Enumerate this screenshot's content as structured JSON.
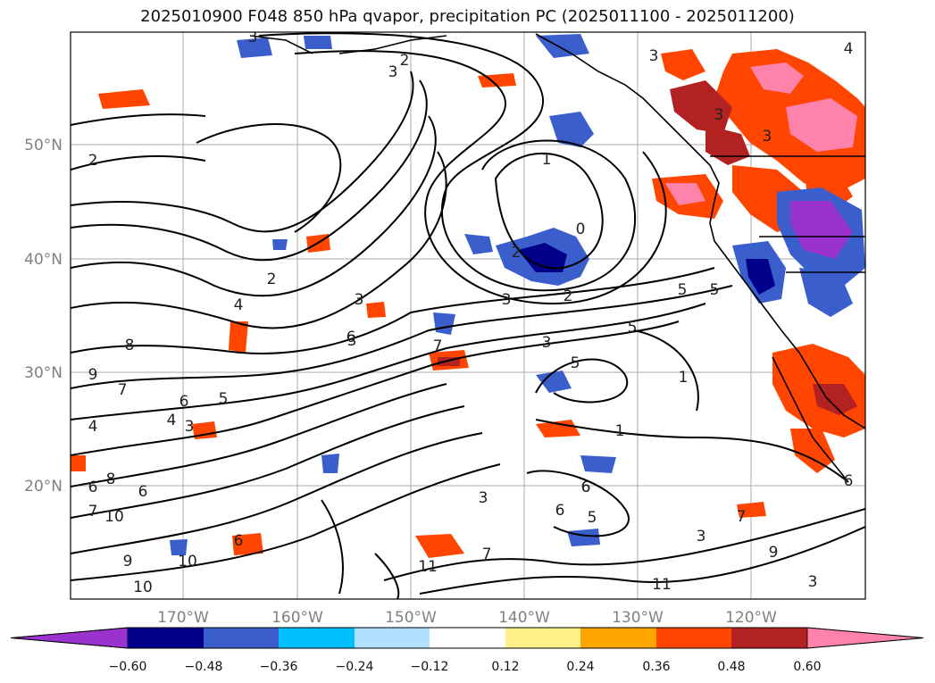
{
  "title": "2025010900 F048 850 hPa qvapor, precipitation PC (2025011100 - 2025011200)",
  "map": {
    "lat_labels": [
      "50°N",
      "40°N",
      "30°N",
      "20°N"
    ],
    "lon_labels": [
      "170°W",
      "160°W",
      "150°W",
      "140°W",
      "130°W",
      "120°W"
    ],
    "contour_labels": [
      "3",
      "2",
      "3",
      "3",
      "2",
      "1",
      "0",
      "2",
      "2",
      "3",
      "4",
      "3",
      "2",
      "3",
      "5",
      "1",
      "3",
      "8",
      "9",
      "7",
      "6",
      "5",
      "4",
      "3",
      "4",
      "7",
      "3",
      "5",
      "1",
      "6",
      "6",
      "8",
      "7",
      "10",
      "6",
      "3",
      "6",
      "5",
      "3",
      "7",
      "6",
      "9",
      "10",
      "10",
      "11",
      "11",
      "3",
      "6",
      "3",
      "4",
      "7",
      "5",
      "6",
      "6",
      "5",
      "9"
    ]
  },
  "colorbar": {
    "ticks": [
      "−0.60",
      "−0.48",
      "−0.36",
      "−0.24",
      "−0.12",
      "0.12",
      "0.24",
      "0.36",
      "0.48",
      "0.60"
    ],
    "colors": [
      "#9a32cd",
      "#00008b",
      "#3a5fcd",
      "#00bfff",
      "#b0e2ff",
      "#ffffff",
      "#fff08a",
      "#ffa500",
      "#ff4500",
      "#b22222",
      "#ff82ab"
    ]
  }
}
